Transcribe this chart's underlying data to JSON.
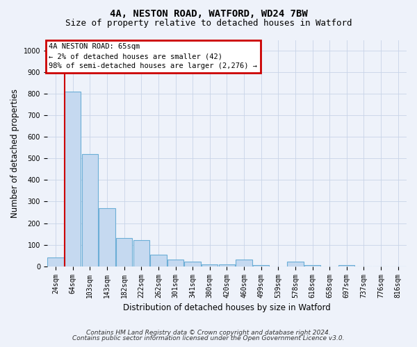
{
  "title1": "4A, NESTON ROAD, WATFORD, WD24 7BW",
  "title2": "Size of property relative to detached houses in Watford",
  "xlabel": "Distribution of detached houses by size in Watford",
  "ylabel": "Number of detached properties",
  "footnote1": "Contains HM Land Registry data © Crown copyright and database right 2024.",
  "footnote2": "Contains public sector information licensed under the Open Government Licence v3.0.",
  "annotation_line1": "4A NESTON ROAD: 65sqm",
  "annotation_line2": "← 2% of detached houses are smaller (42)",
  "annotation_line3": "98% of semi-detached houses are larger (2,276) →",
  "bar_labels": [
    "24sqm",
    "64sqm",
    "103sqm",
    "143sqm",
    "182sqm",
    "222sqm",
    "262sqm",
    "301sqm",
    "341sqm",
    "380sqm",
    "420sqm",
    "460sqm",
    "499sqm",
    "539sqm",
    "578sqm",
    "618sqm",
    "658sqm",
    "697sqm",
    "737sqm",
    "776sqm",
    "816sqm"
  ],
  "bar_values": [
    42,
    810,
    520,
    270,
    130,
    120,
    55,
    30,
    20,
    10,
    10,
    30,
    5,
    0,
    20,
    5,
    0,
    5,
    0,
    0,
    0
  ],
  "bar_color": "#c5d9f0",
  "bar_edge_color": "#6baed6",
  "ylim": [
    0,
    1050
  ],
  "yticks": [
    0,
    100,
    200,
    300,
    400,
    500,
    600,
    700,
    800,
    900,
    1000
  ],
  "red_line_x": 0.505,
  "background_color": "#eef2fa",
  "grid_color": "#c8d4e8",
  "annotation_box_facecolor": "#ffffff",
  "annotation_border_color": "#cc0000",
  "title_fontsize": 10,
  "subtitle_fontsize": 9,
  "axis_label_fontsize": 8.5,
  "tick_fontsize": 7,
  "footnote_fontsize": 6.5
}
